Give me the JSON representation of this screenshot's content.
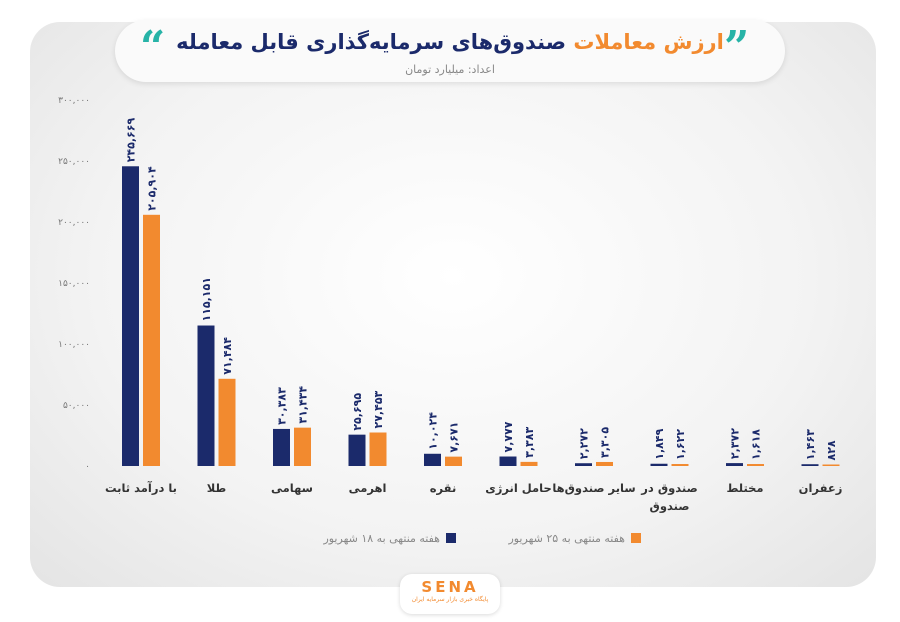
{
  "header": {
    "title_main": "صندوق‌های سرمایه‌گذاری قابل معامله",
    "title_accent": "ارزش معاملات",
    "subtitle": "اعداد: میلیارد تومان",
    "quote_left": "“",
    "quote_right": "”"
  },
  "logo": {
    "text": "SENA",
    "subtext": "پایگاه خبری بازار سرمایه ایران"
  },
  "colors": {
    "series1": "#1b2a6b",
    "series2": "#f28a2f",
    "accent_quote": "#27b3a7"
  },
  "chart_data": {
    "type": "bar",
    "categories": [
      "با درآمد ثابت",
      "طلا",
      "سهامی",
      "اهرمی",
      "نقره",
      "حامل انرژی",
      "سایر صندوق‌ها",
      "صندوق در صندوق",
      "مختلط",
      "زعفران"
    ],
    "category_lines": [
      [
        "با درآمد ثابت"
      ],
      [
        "طلا"
      ],
      [
        "سهامی"
      ],
      [
        "اهرمی"
      ],
      [
        "نقره"
      ],
      [
        "حامل انرژی"
      ],
      [
        "سایر صندوق‌ها"
      ],
      [
        "صندوق در",
        "صندوق"
      ],
      [
        "مختلط"
      ],
      [
        "زعفران"
      ]
    ],
    "series": [
      {
        "name": "هفته منتهی به ۱۸ شهریور",
        "values": [
          245669,
          115151,
          30383,
          25695,
          10024,
          7777,
          2272,
          1849,
          2372,
          1463
        ],
        "labels": [
          "۲۴۵,۶۶۹",
          "۱۱۵,۱۵۱",
          "۳۰,۳۸۳",
          "۲۵,۶۹۵",
          "۱۰,۰۲۴",
          "۷,۷۷۷",
          "۲,۲۷۲",
          "۱,۸۴۹",
          "۲,۳۷۲",
          "۱,۴۶۳"
        ]
      },
      {
        "name": "هفته منتهی به ۲۵ شهریور",
        "values": [
          205904,
          71484,
          31434,
          27453,
          7671,
          3383,
          3305,
          1622,
          1618,
          828
        ],
        "labels": [
          "۲۰۵,۹۰۴",
          "۷۱,۴۸۴",
          "۳۱,۴۳۴",
          "۲۷,۴۵۳",
          "۷,۶۷۱",
          "۳,۳۸۳",
          "۳,۳۰۵",
          "۱,۶۲۲",
          "۱,۶۱۸",
          "۸۲۸"
        ]
      }
    ],
    "yticks": [
      0,
      50000,
      100000,
      150000,
      200000,
      250000,
      300000
    ],
    "ytick_labels": [
      "۰",
      "۵۰,۰۰۰",
      "۱۰۰,۰۰۰",
      "۱۵۰,۰۰۰",
      "۲۰۰,۰۰۰",
      "۲۵۰,۰۰۰",
      "۳۰۰,۰۰۰"
    ],
    "ylim": [
      0,
      300000
    ],
    "grid": false,
    "legend_position": "bottom"
  }
}
